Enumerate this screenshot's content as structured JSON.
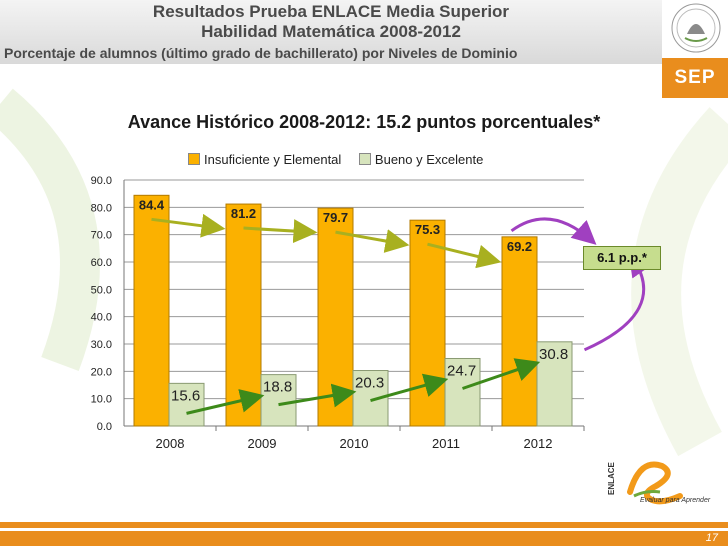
{
  "header": {
    "title_line1": "Resultados Prueba ENLACE Media Superior",
    "title_line2": "Habilidad Matemática 2008-2012",
    "subtitle": "Porcentaje de alumnos (último grado de bachillerato) por Niveles de Dominio"
  },
  "brand": {
    "sep_label": "SEP",
    "logo_name": "ENLACE",
    "logo_tagline": "Evaluar para Aprender"
  },
  "page_number": "17",
  "annotation": {
    "pp_label": "6.1 p.p.*"
  },
  "colors": {
    "orange": "#fbb100",
    "green_light": "#d7e4bd",
    "accent_orange": "#e98d1d",
    "arrow_yellow": "#a8b020",
    "arrow_green": "#3d8a1a",
    "arrow_purple": "#a040c0"
  },
  "chart_data": {
    "type": "bar",
    "title": "Avance Histórico 2008-2012:  15.2  puntos porcentuales*",
    "categories": [
      "2008",
      "2009",
      "2010",
      "2011",
      "2012"
    ],
    "series": [
      {
        "name": "Insuficiente y Elemental",
        "values": [
          84.4,
          81.2,
          79.7,
          75.3,
          69.2
        ],
        "labels": [
          "84.4",
          "81.2",
          "79.7",
          "75.3",
          "69.2"
        ]
      },
      {
        "name": "Bueno y Excelente",
        "values": [
          15.6,
          18.8,
          20.3,
          24.7,
          30.8
        ],
        "labels": [
          "15.6",
          "18.8",
          "20.3",
          "24.7",
          "30.8"
        ]
      }
    ],
    "ylim": [
      0,
      90
    ],
    "yticks": [
      "0.0",
      "10.0",
      "20.0",
      "30.0",
      "40.0",
      "50.0",
      "60.0",
      "70.0",
      "80.0",
      "90.0"
    ],
    "grid": true,
    "legend": "top"
  }
}
